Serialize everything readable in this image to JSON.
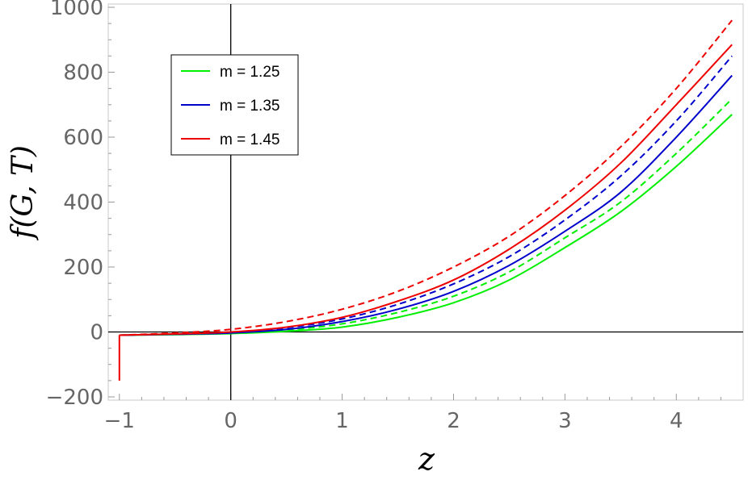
{
  "chart_data": {
    "type": "line",
    "xlabel": "z",
    "ylabel": "f(G, T)",
    "xlim": [
      -1.1,
      4.6
    ],
    "ylim": [
      -210,
      1010
    ],
    "x_ticks": [
      {
        "value": -1,
        "label": "−1"
      },
      {
        "value": 0,
        "label": "0"
      },
      {
        "value": 1,
        "label": "1"
      },
      {
        "value": 2,
        "label": "2"
      },
      {
        "value": 3,
        "label": "3"
      },
      {
        "value": 4,
        "label": "4"
      }
    ],
    "y_ticks": [
      {
        "value": -200,
        "label": "−200"
      },
      {
        "value": 0,
        "label": "0"
      },
      {
        "value": 200,
        "label": "200"
      },
      {
        "value": 400,
        "label": "400"
      },
      {
        "value": 600,
        "label": "600"
      },
      {
        "value": 800,
        "label": "800"
      },
      {
        "value": 1000,
        "label": "1000"
      }
    ],
    "grid": false,
    "legend_position": "top-left",
    "legend": [
      {
        "label": "m = 1.25",
        "color": "#00ee00"
      },
      {
        "label": "m = 1.35",
        "color": "#0000cc"
      },
      {
        "label": "m = 1.45",
        "color": "#ee0000"
      }
    ],
    "series": [
      {
        "color": "#00ee00",
        "style": "solid",
        "x": [
          -1,
          -0.5,
          0,
          0.5,
          1,
          1.5,
          2,
          2.5,
          3,
          3.5,
          4,
          4.5
        ],
        "y": [
          -10,
          -8,
          -5,
          2,
          15,
          45,
          90,
          160,
          260,
          370,
          510,
          670
        ]
      },
      {
        "color": "#00ee00",
        "style": "dashed",
        "x": [
          -1,
          -0.5,
          0,
          0.5,
          1,
          1.5,
          2,
          2.5,
          3,
          3.5,
          4,
          4.5
        ],
        "y": [
          -10,
          -7,
          -3,
          6,
          25,
          60,
          110,
          185,
          290,
          400,
          550,
          718
        ]
      },
      {
        "color": "#0000cc",
        "style": "solid",
        "x": [
          -1,
          -0.5,
          0,
          0.5,
          1,
          1.5,
          2,
          2.5,
          3,
          3.5,
          4,
          4.5
        ],
        "y": [
          -10,
          -7,
          -3,
          8,
          32,
          70,
          125,
          205,
          310,
          430,
          600,
          790
        ]
      },
      {
        "color": "#0000cc",
        "style": "dashed",
        "x": [
          -1,
          -0.5,
          0,
          0.5,
          1,
          1.5,
          2,
          2.5,
          3,
          3.5,
          4,
          4.5
        ],
        "y": [
          -10,
          -6,
          -1,
          13,
          40,
          85,
          148,
          232,
          345,
          480,
          650,
          850
        ]
      },
      {
        "color": "#ee0000",
        "style": "solid",
        "x": [
          -1,
          -0.5,
          0,
          0.5,
          1,
          1.5,
          2,
          2.5,
          3,
          3.5,
          4,
          4.5
        ],
        "y": [
          -10,
          -6,
          0,
          15,
          45,
          95,
          160,
          255,
          375,
          520,
          700,
          885
        ]
      },
      {
        "color": "#ee0000",
        "style": "dashed",
        "x": [
          -1,
          -0.5,
          0,
          0.5,
          1,
          1.5,
          2,
          2.5,
          3,
          3.5,
          4,
          4.5
        ],
        "y": [
          -10,
          -3,
          8,
          32,
          70,
          125,
          200,
          295,
          420,
          570,
          750,
          960
        ]
      },
      {
        "color": "#ee0000",
        "style": "solid",
        "x": [
          -1,
          -1
        ],
        "y": [
          -150,
          -10
        ]
      }
    ]
  }
}
